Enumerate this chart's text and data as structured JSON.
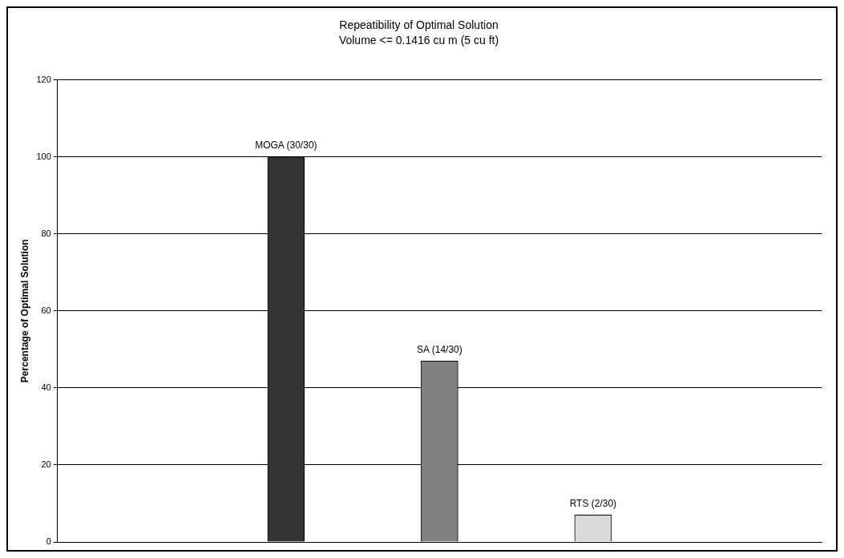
{
  "chart_data": {
    "type": "bar",
    "title": "Repeatibility of Optimal Solution",
    "subtitle": "Volume <= 0.1416 cu m (5 cu ft)",
    "ylabel": "Percentage of Optimal Solution",
    "categories": [
      null,
      null,
      null
    ],
    "values": [
      100,
      47,
      7
    ],
    "colors": [
      "#333333",
      "#808080",
      "#d9d9d9"
    ],
    "value_labels": [
      "MOGA (30/30)",
      "SA (14/30)",
      "RTS (2/30)"
    ],
    "ylim": [
      0,
      120
    ],
    "yticks": [
      0,
      20,
      40,
      60,
      80,
      100,
      120
    ],
    "grid": "y",
    "legend": false
  }
}
